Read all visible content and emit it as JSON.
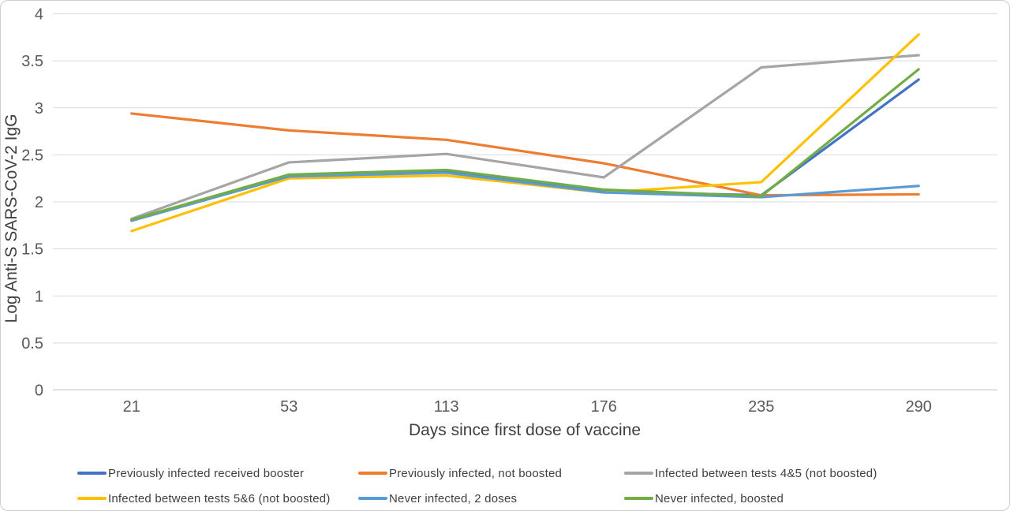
{
  "chart_data": {
    "type": "line",
    "title": "",
    "xlabel": "Days since first dose of vaccine",
    "ylabel": "Log Anti-S SARS-CoV-2 IgG",
    "categories": [
      "21",
      "53",
      "113",
      "176",
      "235",
      "290"
    ],
    "x_axis_spacing": "categorical-equal",
    "ylim": [
      0,
      4
    ],
    "yticks": [
      "0",
      "0.5",
      "1",
      "1.5",
      "2",
      "2.5",
      "3",
      "3.5",
      "4"
    ],
    "grid": true,
    "gridline_color": "#d9d9d9",
    "axis_line_color": "#bfbfbf",
    "tick_label_color": "#595959",
    "axis_title_color": "#404040",
    "legend_position": "bottom",
    "series": [
      {
        "name": "Previously infected received booster",
        "color": "#4472C4",
        "values": [
          1.8,
          2.28,
          2.32,
          2.11,
          2.07,
          3.3
        ]
      },
      {
        "name": "Previously infected, not boosted",
        "color": "#ED7D31",
        "values": [
          2.94,
          2.76,
          2.66,
          2.41,
          2.07,
          2.08
        ]
      },
      {
        "name": "Infected between tests 4&5 (not boosted)",
        "color": "#A5A5A5",
        "values": [
          1.82,
          2.42,
          2.51,
          2.26,
          3.43,
          3.56
        ]
      },
      {
        "name": "Infected between tests 5&6 (not boosted)",
        "color": "#FFC000",
        "values": [
          1.69,
          2.25,
          2.28,
          2.1,
          2.21,
          3.78
        ]
      },
      {
        "name": "Never infected, 2 doses",
        "color": "#5B9BD5",
        "values": [
          1.8,
          2.27,
          2.31,
          2.1,
          2.05,
          2.17
        ]
      },
      {
        "name": "Never infected, boosted",
        "color": "#70AD47",
        "values": [
          1.81,
          2.29,
          2.34,
          2.13,
          2.06,
          3.41
        ]
      }
    ]
  }
}
